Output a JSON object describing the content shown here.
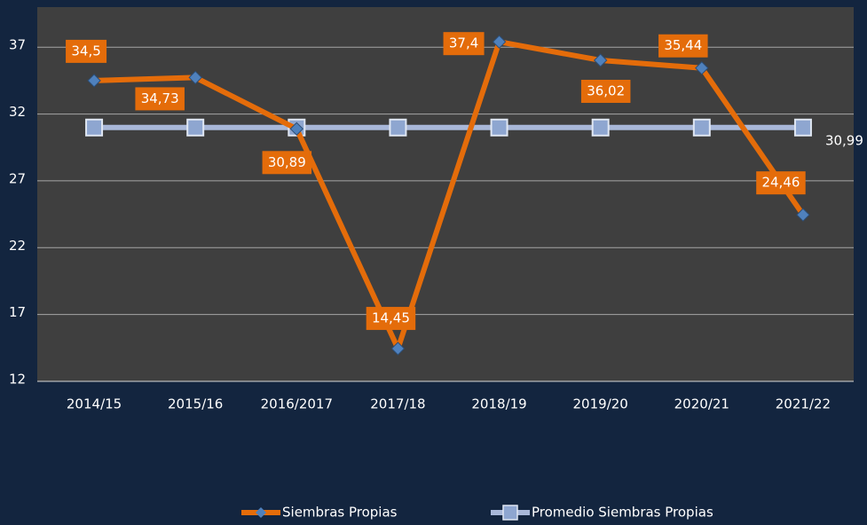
{
  "chart_data": {
    "type": "line",
    "categories": [
      "2014/15",
      "2015/16",
      "2016/2017",
      "2017/18",
      "2018/19",
      "2019/20",
      "2020/21",
      "2021/22"
    ],
    "series": [
      {
        "name": "Siembras Propias",
        "color": "#e46c0a",
        "marker_color": "#4f81bd",
        "values": [
          34.5,
          34.73,
          30.89,
          14.45,
          37.4,
          36.02,
          35.44,
          24.46
        ],
        "value_labels": [
          "34,5",
          "34,73",
          "30,89",
          "14,45",
          "37,4",
          "36,02",
          "35,44",
          "24,46"
        ]
      },
      {
        "name": "Promedio Siembras Propias",
        "color": "#a9b8d9",
        "marker_color": "#8ea6d0",
        "values": [
          30.99,
          30.99,
          30.99,
          30.99,
          30.99,
          30.99,
          30.99,
          30.99
        ],
        "value_labels": [
          null,
          null,
          null,
          null,
          null,
          null,
          null,
          "30,99"
        ]
      }
    ],
    "ylim": [
      12,
      40
    ],
    "yticks": [
      12,
      17,
      22,
      27,
      32,
      37
    ],
    "grid": true,
    "legend": "bottom"
  }
}
